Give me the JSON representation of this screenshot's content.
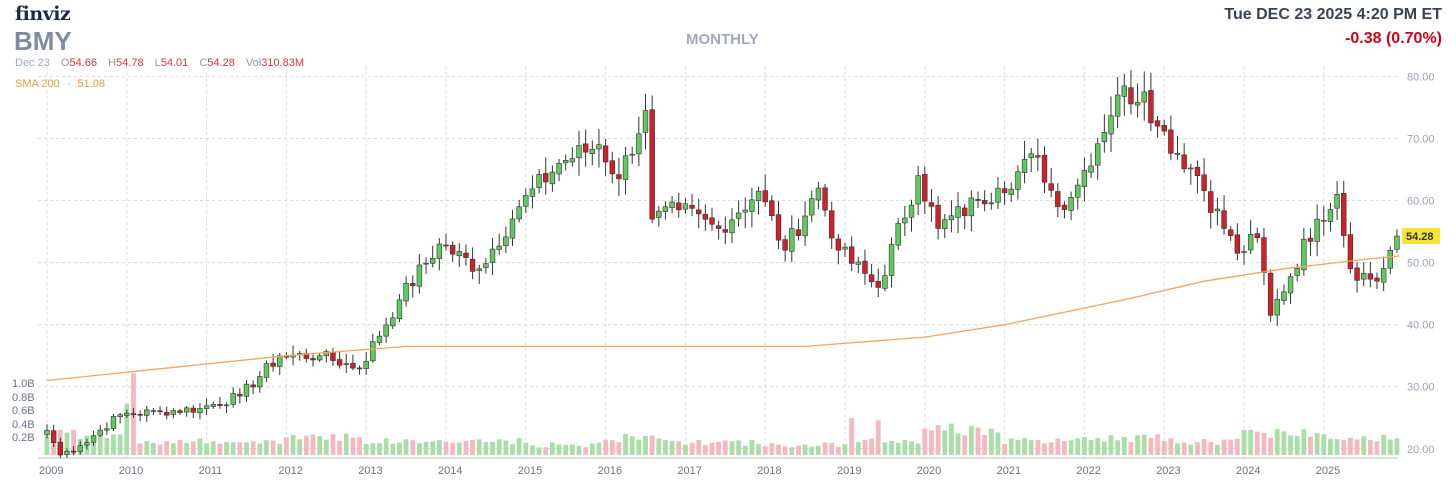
{
  "header": {
    "logo": "finviz",
    "ticker": "BMY",
    "timeframe": "MONTHLY",
    "datetime": "Tue DEC 23 2025 4:20 PM ET",
    "change": "-0.38 (0.70%)"
  },
  "ohlc": {
    "date": "Dec 23",
    "open_label": "O",
    "open": "54.66",
    "high_label": "H",
    "high": "54.78",
    "low_label": "L",
    "low": "54.01",
    "close_label": "C",
    "close": "54.28",
    "vol_label": "Vol",
    "vol": "310.83M"
  },
  "sma": {
    "label": "SMA 200",
    "sep": "·",
    "value": "51.08"
  },
  "colors": {
    "up": "#5fc85f",
    "down": "#d0202b",
    "sma": "#f4a55a",
    "grid": "#d8dce3",
    "vol_up": "#a9dea9",
    "vol_down": "#f5b8bf",
    "last_badge": "#f5e432"
  },
  "chart_data": {
    "type": "candlestick",
    "x_axis_labels": [
      "2009",
      "2010",
      "2011",
      "2012",
      "2013",
      "2014",
      "2015",
      "2016",
      "2017",
      "2018",
      "2019",
      "2020",
      "2021",
      "2022",
      "2023",
      "2024",
      "2025"
    ],
    "y_axis_labels": [
      "80.00",
      "70.00",
      "60.00",
      "50.00",
      "40.00",
      "30.00",
      "20.00"
    ],
    "ylim": [
      19,
      82
    ],
    "volume_axis_labels": [
      "1.0B",
      "0.8B",
      "0.6B",
      "0.4B",
      "0.2B"
    ],
    "volume_ylim": [
      0,
      1.2
    ],
    "last_price": "54.28",
    "start": "2009-01",
    "anchors": [
      [
        "2009-01",
        23
      ],
      [
        "2009-03",
        19
      ],
      [
        "2009-06",
        20.5
      ],
      [
        "2009-12",
        25.5
      ],
      [
        "2010-06",
        26
      ],
      [
        "2010-12",
        26.5
      ],
      [
        "2011-06",
        28.5
      ],
      [
        "2011-12",
        35
      ],
      [
        "2012-06",
        35
      ],
      [
        "2012-12",
        33
      ],
      [
        "2013-06",
        44
      ],
      [
        "2013-12",
        53
      ],
      [
        "2014-06",
        49
      ],
      [
        "2014-12",
        59
      ],
      [
        "2015-06",
        66
      ],
      [
        "2015-12",
        69
      ],
      [
        "2016-03",
        63.5
      ],
      [
        "2016-07",
        74.5
      ],
      [
        "2016-08",
        57
      ],
      [
        "2016-12",
        58.5
      ],
      [
        "2017-06",
        55.5
      ],
      [
        "2017-12",
        61.5
      ],
      [
        "2018-04",
        52
      ],
      [
        "2018-09",
        62
      ],
      [
        "2018-12",
        52
      ],
      [
        "2019-06",
        46
      ],
      [
        "2019-12",
        64
      ],
      [
        "2020-03",
        55.5
      ],
      [
        "2020-09",
        60
      ],
      [
        "2020-12",
        62
      ],
      [
        "2021-06",
        67
      ],
      [
        "2021-09",
        59
      ],
      [
        "2021-12",
        62.5
      ],
      [
        "2022-06",
        77
      ],
      [
        "2022-10",
        77.5
      ],
      [
        "2022-12",
        72
      ],
      [
        "2023-06",
        64
      ],
      [
        "2023-12",
        51.5
      ],
      [
        "2024-03",
        54
      ],
      [
        "2024-05",
        41.5
      ],
      [
        "2024-12",
        57
      ],
      [
        "2025-03",
        61
      ],
      [
        "2025-05",
        49
      ],
      [
        "2025-09",
        47
      ],
      [
        "2025-12",
        54.28
      ]
    ],
    "sma": [
      [
        2009.0,
        31
      ],
      [
        2012.0,
        35
      ],
      [
        2013.5,
        36.5
      ],
      [
        2016.0,
        36.5
      ],
      [
        2018.5,
        36.5
      ],
      [
        2020.0,
        38
      ],
      [
        2021.0,
        40
      ],
      [
        2022.5,
        44
      ],
      [
        2023.5,
        47
      ],
      [
        2024.5,
        49
      ],
      [
        2025.5,
        50.5
      ],
      [
        2025.95,
        51.08
      ]
    ],
    "volume": [
      [
        "2009",
        0.3
      ],
      [
        "2010-01",
        0.7
      ],
      [
        "2010-02",
        1.0
      ],
      [
        "2011",
        0.18
      ],
      [
        "2012",
        0.28
      ],
      [
        "2013",
        0.2
      ],
      [
        "2014",
        0.2
      ],
      [
        "2015",
        0.15
      ],
      [
        "2016",
        0.25
      ],
      [
        "2017",
        0.18
      ],
      [
        "2018",
        0.15
      ],
      [
        "2019-02",
        0.45
      ],
      [
        "2019-06",
        0.42
      ],
      [
        "2020",
        0.38
      ],
      [
        "2020-03",
        0.5
      ],
      [
        "2021",
        0.2
      ],
      [
        "2022",
        0.25
      ],
      [
        "2023",
        0.2
      ],
      [
        "2024",
        0.33
      ],
      [
        "2025",
        0.27
      ]
    ]
  }
}
